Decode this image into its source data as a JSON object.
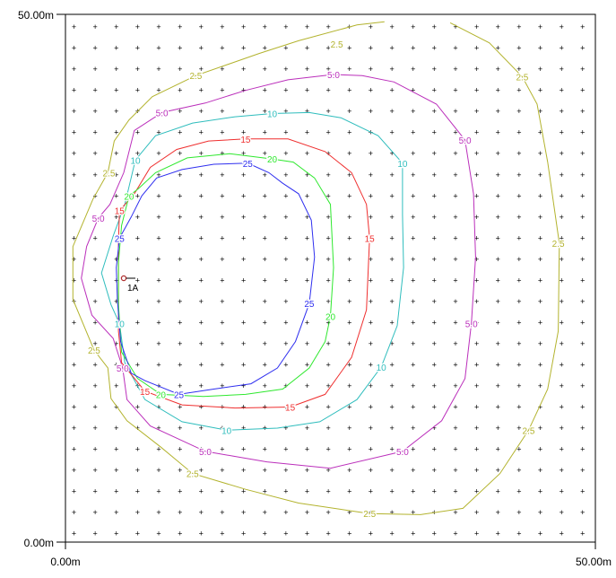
{
  "chart_data": {
    "type": "contour",
    "axis_labels": {
      "y_top": "50.00m",
      "y_bottom": "0.00m",
      "x_left": "0.00m",
      "x_right": "50.00m"
    },
    "xlim": [
      0,
      50
    ],
    "ylim": [
      0,
      50
    ],
    "grid_marks": "plus",
    "grid_spacing": 2.5,
    "source_marker": {
      "label": "1A",
      "x": 5.5,
      "y": 25.0
    },
    "levels": [
      {
        "name": "2.5",
        "color": "#b3b32e",
        "label_positions": [
          [
            25.6,
            47.2
          ],
          [
            12.3,
            44.2
          ],
          [
            43.1,
            44.1
          ],
          [
            4.1,
            35.0
          ],
          [
            46.5,
            28.3
          ],
          [
            2.7,
            18.2
          ],
          [
            43.7,
            10.6
          ],
          [
            12.0,
            6.5
          ],
          [
            28.7,
            2.7
          ]
        ],
        "points": [
          [
            30.1,
            49.3
          ],
          [
            27.5,
            49.0
          ],
          [
            22.0,
            47.5
          ],
          [
            18.3,
            46.3
          ],
          [
            12.3,
            44.2
          ],
          [
            8.2,
            42.2
          ],
          [
            6.0,
            40.0
          ],
          [
            4.6,
            38.0
          ],
          [
            4.0,
            35.0
          ],
          [
            2.6,
            32.5
          ],
          [
            0.7,
            28.0
          ],
          [
            0.7,
            23.0
          ],
          [
            2.7,
            18.2
          ],
          [
            4.0,
            16.5
          ],
          [
            4.3,
            13.6
          ],
          [
            5.8,
            11.5
          ],
          [
            9.0,
            9.0
          ],
          [
            12.0,
            6.5
          ],
          [
            17.0,
            5.0
          ],
          [
            22.0,
            3.7
          ],
          [
            28.7,
            2.7
          ],
          [
            33.5,
            2.6
          ],
          [
            37.5,
            3.2
          ],
          [
            41.0,
            6.5
          ],
          [
            43.7,
            10.6
          ],
          [
            45.5,
            14.5
          ],
          [
            46.5,
            20.0
          ],
          [
            46.6,
            28.3
          ],
          [
            45.5,
            36.0
          ],
          [
            44.5,
            41.5
          ],
          [
            43.1,
            44.1
          ],
          [
            40.0,
            47.3
          ],
          [
            36.3,
            49.2
          ]
        ]
      },
      {
        "name": "5.0",
        "color": "#bb2fbb",
        "label_positions": [
          [
            25.3,
            44.3
          ],
          [
            9.1,
            40.7
          ],
          [
            37.7,
            38.1
          ],
          [
            3.1,
            30.7
          ],
          [
            38.3,
            20.7
          ],
          [
            5.4,
            16.5
          ],
          [
            13.2,
            8.6
          ],
          [
            31.8,
            8.6
          ]
        ],
        "points": [
          [
            25.3,
            44.3
          ],
          [
            21.0,
            43.8
          ],
          [
            17.0,
            42.8
          ],
          [
            13.2,
            41.6
          ],
          [
            9.1,
            40.7
          ],
          [
            6.5,
            39.0
          ],
          [
            5.5,
            35.0
          ],
          [
            4.2,
            32.0
          ],
          [
            3.1,
            30.7
          ],
          [
            2.0,
            28.0
          ],
          [
            1.5,
            25.0
          ],
          [
            2.5,
            21.5
          ],
          [
            4.5,
            19.3
          ],
          [
            5.4,
            16.5
          ],
          [
            5.8,
            13.5
          ],
          [
            8.0,
            11.0
          ],
          [
            13.2,
            8.6
          ],
          [
            19.0,
            7.6
          ],
          [
            25.0,
            7.0
          ],
          [
            31.8,
            8.6
          ],
          [
            35.5,
            11.5
          ],
          [
            37.7,
            15.5
          ],
          [
            38.3,
            20.7
          ],
          [
            38.7,
            27.0
          ],
          [
            38.5,
            33.0
          ],
          [
            37.7,
            38.1
          ],
          [
            35.0,
            41.5
          ],
          [
            31.0,
            43.6
          ],
          [
            28.0,
            44.2
          ]
        ]
      },
      {
        "name": "10",
        "color": "#2fbdbd",
        "label_positions": [
          [
            19.5,
            40.6
          ],
          [
            31.8,
            35.9
          ],
          [
            6.6,
            36.2
          ],
          [
            29.8,
            16.6
          ],
          [
            15.2,
            10.6
          ],
          [
            5.1,
            20.7
          ]
        ],
        "points": [
          [
            19.5,
            40.6
          ],
          [
            16.0,
            40.3
          ],
          [
            12.0,
            39.7
          ],
          [
            8.5,
            38.5
          ],
          [
            6.6,
            36.2
          ],
          [
            5.6,
            32.0
          ],
          [
            4.5,
            29.0
          ],
          [
            3.4,
            25.5
          ],
          [
            4.3,
            22.5
          ],
          [
            5.1,
            20.7
          ],
          [
            5.6,
            17.0
          ],
          [
            7.5,
            13.5
          ],
          [
            11.0,
            11.4
          ],
          [
            15.2,
            10.6
          ],
          [
            20.0,
            10.8
          ],
          [
            24.0,
            11.4
          ],
          [
            27.5,
            13.5
          ],
          [
            29.8,
            16.6
          ],
          [
            31.3,
            20.5
          ],
          [
            31.9,
            26.0
          ],
          [
            31.8,
            31.0
          ],
          [
            31.8,
            35.9
          ],
          [
            29.5,
            38.5
          ],
          [
            26.0,
            40.2
          ],
          [
            23.0,
            40.7
          ]
        ]
      },
      {
        "name": "15",
        "color": "#ef2f2f",
        "label_positions": [
          [
            17.0,
            38.2
          ],
          [
            5.1,
            31.4
          ],
          [
            28.7,
            28.8
          ],
          [
            7.5,
            14.3
          ],
          [
            21.2,
            12.8
          ]
        ],
        "points": [
          [
            17.0,
            38.2
          ],
          [
            13.5,
            38.0
          ],
          [
            10.5,
            37.2
          ],
          [
            8.0,
            35.5
          ],
          [
            6.5,
            33.0
          ],
          [
            5.1,
            31.4
          ],
          [
            5.0,
            28.5
          ],
          [
            5.0,
            24.5
          ],
          [
            5.0,
            20.0
          ],
          [
            5.3,
            17.0
          ],
          [
            7.5,
            14.3
          ],
          [
            11.0,
            13.0
          ],
          [
            16.0,
            12.7
          ],
          [
            21.2,
            12.8
          ],
          [
            24.5,
            14.0
          ],
          [
            27.0,
            17.5
          ],
          [
            28.4,
            22.0
          ],
          [
            28.7,
            28.8
          ],
          [
            28.4,
            32.0
          ],
          [
            27.0,
            35.0
          ],
          [
            24.5,
            37.0
          ],
          [
            21.0,
            38.2
          ]
        ]
      },
      {
        "name": "20",
        "color": "#2fe82f",
        "label_positions": [
          [
            19.5,
            36.3
          ],
          [
            6.0,
            32.8
          ],
          [
            25.0,
            21.4
          ],
          [
            9.0,
            14.0
          ]
        ],
        "points": [
          [
            19.5,
            36.3
          ],
          [
            15.5,
            36.8
          ],
          [
            11.5,
            36.4
          ],
          [
            8.5,
            35.0
          ],
          [
            6.9,
            33.5
          ],
          [
            6.0,
            32.8
          ],
          [
            5.3,
            30.0
          ],
          [
            5.0,
            26.5
          ],
          [
            5.0,
            22.5
          ],
          [
            5.3,
            18.0
          ],
          [
            6.8,
            15.5
          ],
          [
            9.0,
            14.0
          ],
          [
            13.0,
            13.8
          ],
          [
            17.0,
            14.0
          ],
          [
            20.5,
            14.5
          ],
          [
            23.0,
            16.5
          ],
          [
            24.5,
            19.0
          ],
          [
            25.0,
            21.4
          ],
          [
            25.3,
            26.0
          ],
          [
            25.0,
            32.0
          ],
          [
            23.5,
            34.5
          ],
          [
            21.5,
            36.0
          ]
        ]
      },
      {
        "name": "25",
        "color": "#2f2fef",
        "label_positions": [
          [
            17.2,
            35.9
          ],
          [
            5.1,
            28.8
          ],
          [
            23.0,
            22.6
          ],
          [
            10.7,
            14.0
          ]
        ],
        "points": [
          [
            17.2,
            35.9
          ],
          [
            14.0,
            35.8
          ],
          [
            11.0,
            35.3
          ],
          [
            8.6,
            34.5
          ],
          [
            7.2,
            32.8
          ],
          [
            6.2,
            30.8
          ],
          [
            5.1,
            28.8
          ],
          [
            4.8,
            26.0
          ],
          [
            4.9,
            23.0
          ],
          [
            5.2,
            19.0
          ],
          [
            6.2,
            16.0
          ],
          [
            7.5,
            15.3
          ],
          [
            10.7,
            14.0
          ],
          [
            14.0,
            14.5
          ],
          [
            17.5,
            15.0
          ],
          [
            20.0,
            16.5
          ],
          [
            21.7,
            19.0
          ],
          [
            23.0,
            22.6
          ],
          [
            23.5,
            27.0
          ],
          [
            23.2,
            30.5
          ],
          [
            22.0,
            33.0
          ],
          [
            20.5,
            34.0
          ],
          [
            19.2,
            35.0
          ]
        ]
      }
    ]
  }
}
